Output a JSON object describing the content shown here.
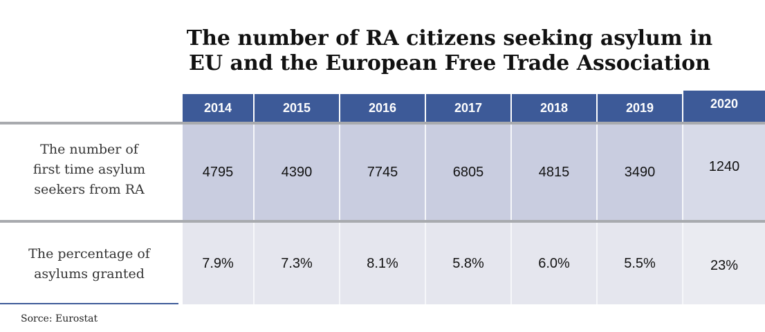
{
  "chart_data": {
    "type": "table",
    "title_lines": [
      "The number of RA citizens seeking asylum in",
      "EU and the European Free Trade Association"
    ],
    "columns": [
      "2014",
      "2015",
      "2016",
      "2017",
      "2018",
      "2019",
      "2020"
    ],
    "rows": [
      {
        "label_lines": [
          "The number of",
          "first time asylum",
          "seekers from RA"
        ],
        "values": [
          "4795",
          "4390",
          "7745",
          "6805",
          "4815",
          "3490",
          "1240"
        ]
      },
      {
        "label_lines": [
          "The percentage of",
          "asylums granted"
        ],
        "values": [
          "7.9%",
          "7.3%",
          "8.1%",
          "5.8%",
          "6.0%",
          "5.5%",
          "23%"
        ]
      }
    ],
    "header_color": "#3d5a98"
  },
  "source": "Sorce: Eurostat"
}
